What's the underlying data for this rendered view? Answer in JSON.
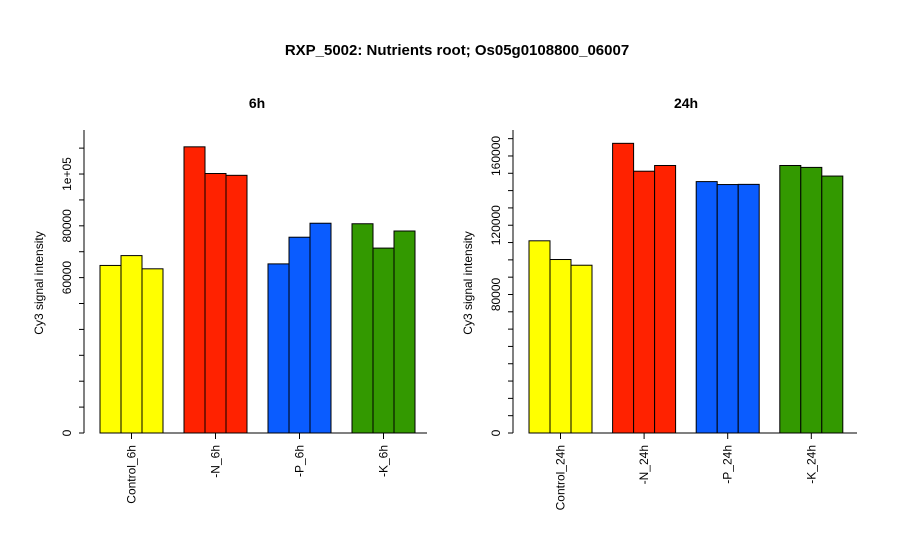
{
  "title": "RXP_5002: Nutrients root; Os05g0108800_06007",
  "chart_data": [
    {
      "type": "bar",
      "title": "6h",
      "ylabel": "Cy3 signal intensity",
      "ylim": [
        0,
        117000
      ],
      "yticks": [
        0,
        60000,
        80000,
        100000
      ],
      "ytick_labels": [
        "0",
        "60000",
        "80000",
        "1e+05"
      ],
      "categories": [
        "Control_6h",
        "-N_6h",
        "-P_6h",
        "-K_6h"
      ],
      "colors": [
        "#ffff00",
        "#ff2200",
        "#0a5cff",
        "#339900"
      ],
      "values": [
        [
          64700,
          68500,
          63400
        ],
        [
          110500,
          100200,
          99500
        ],
        [
          65300,
          75600,
          81000
        ],
        [
          80800,
          71400,
          78000
        ]
      ]
    },
    {
      "type": "bar",
      "title": "24h",
      "ylabel": "Cy3 signal intensity",
      "ylim": [
        0,
        175000
      ],
      "yticks": [
        0,
        80000,
        120000,
        160000
      ],
      "ytick_labels": [
        "0",
        "80000",
        "120000",
        "160000"
      ],
      "categories": [
        "Control_24h",
        "-N_24h",
        "-P_24h",
        "-K_24h"
      ],
      "colors": [
        "#ffff00",
        "#ff2200",
        "#0a5cff",
        "#339900"
      ],
      "values": [
        [
          111000,
          100200,
          96900
        ],
        [
          167300,
          151200,
          154500
        ],
        [
          145200,
          143500,
          143600
        ],
        [
          154500,
          153400,
          148400
        ]
      ]
    }
  ]
}
